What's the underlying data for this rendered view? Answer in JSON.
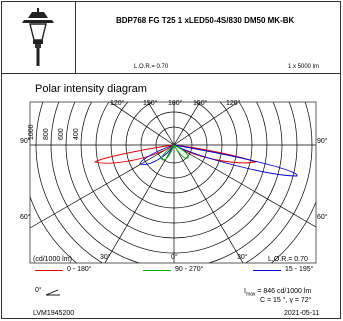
{
  "header": {
    "title": "BDP768 FG T25 1 xLED50-4S/830 DM50 MK-BK",
    "lor": "L.O.R.= 0.70",
    "lamps": "1 x 5000 lm"
  },
  "diagram": {
    "title": "Polar intensity diagram",
    "top_angles": [
      "120°",
      "150°",
      "180°",
      "150°",
      "120°"
    ],
    "side_angles_upper": [
      "90°",
      "90°"
    ],
    "side_angles_lower": [
      "60°",
      "60°"
    ],
    "bottom_angles": [
      "30°",
      "0°",
      "30°"
    ],
    "radial_labels": [
      "1000",
      "800",
      "600",
      "400"
    ],
    "unit_label": "(cd/1000 lm)",
    "lor_label": "L.O.R.= 0.70"
  },
  "legend": {
    "items": [
      {
        "label": "0 - 180°",
        "color": "#e00000"
      },
      {
        "label": "90 - 270°",
        "color": "#00b000"
      },
      {
        "label": "15 - 195°",
        "color": "#0000cc"
      }
    ]
  },
  "footer": {
    "angle_label": "0°",
    "imax": "I",
    "imax_sub": "max",
    "imax_value": "= 846 cd/1000 lm",
    "c_line": "C = 15 °, γ = 72°",
    "code": "LVM1945200",
    "date": "2021-05-11"
  }
}
